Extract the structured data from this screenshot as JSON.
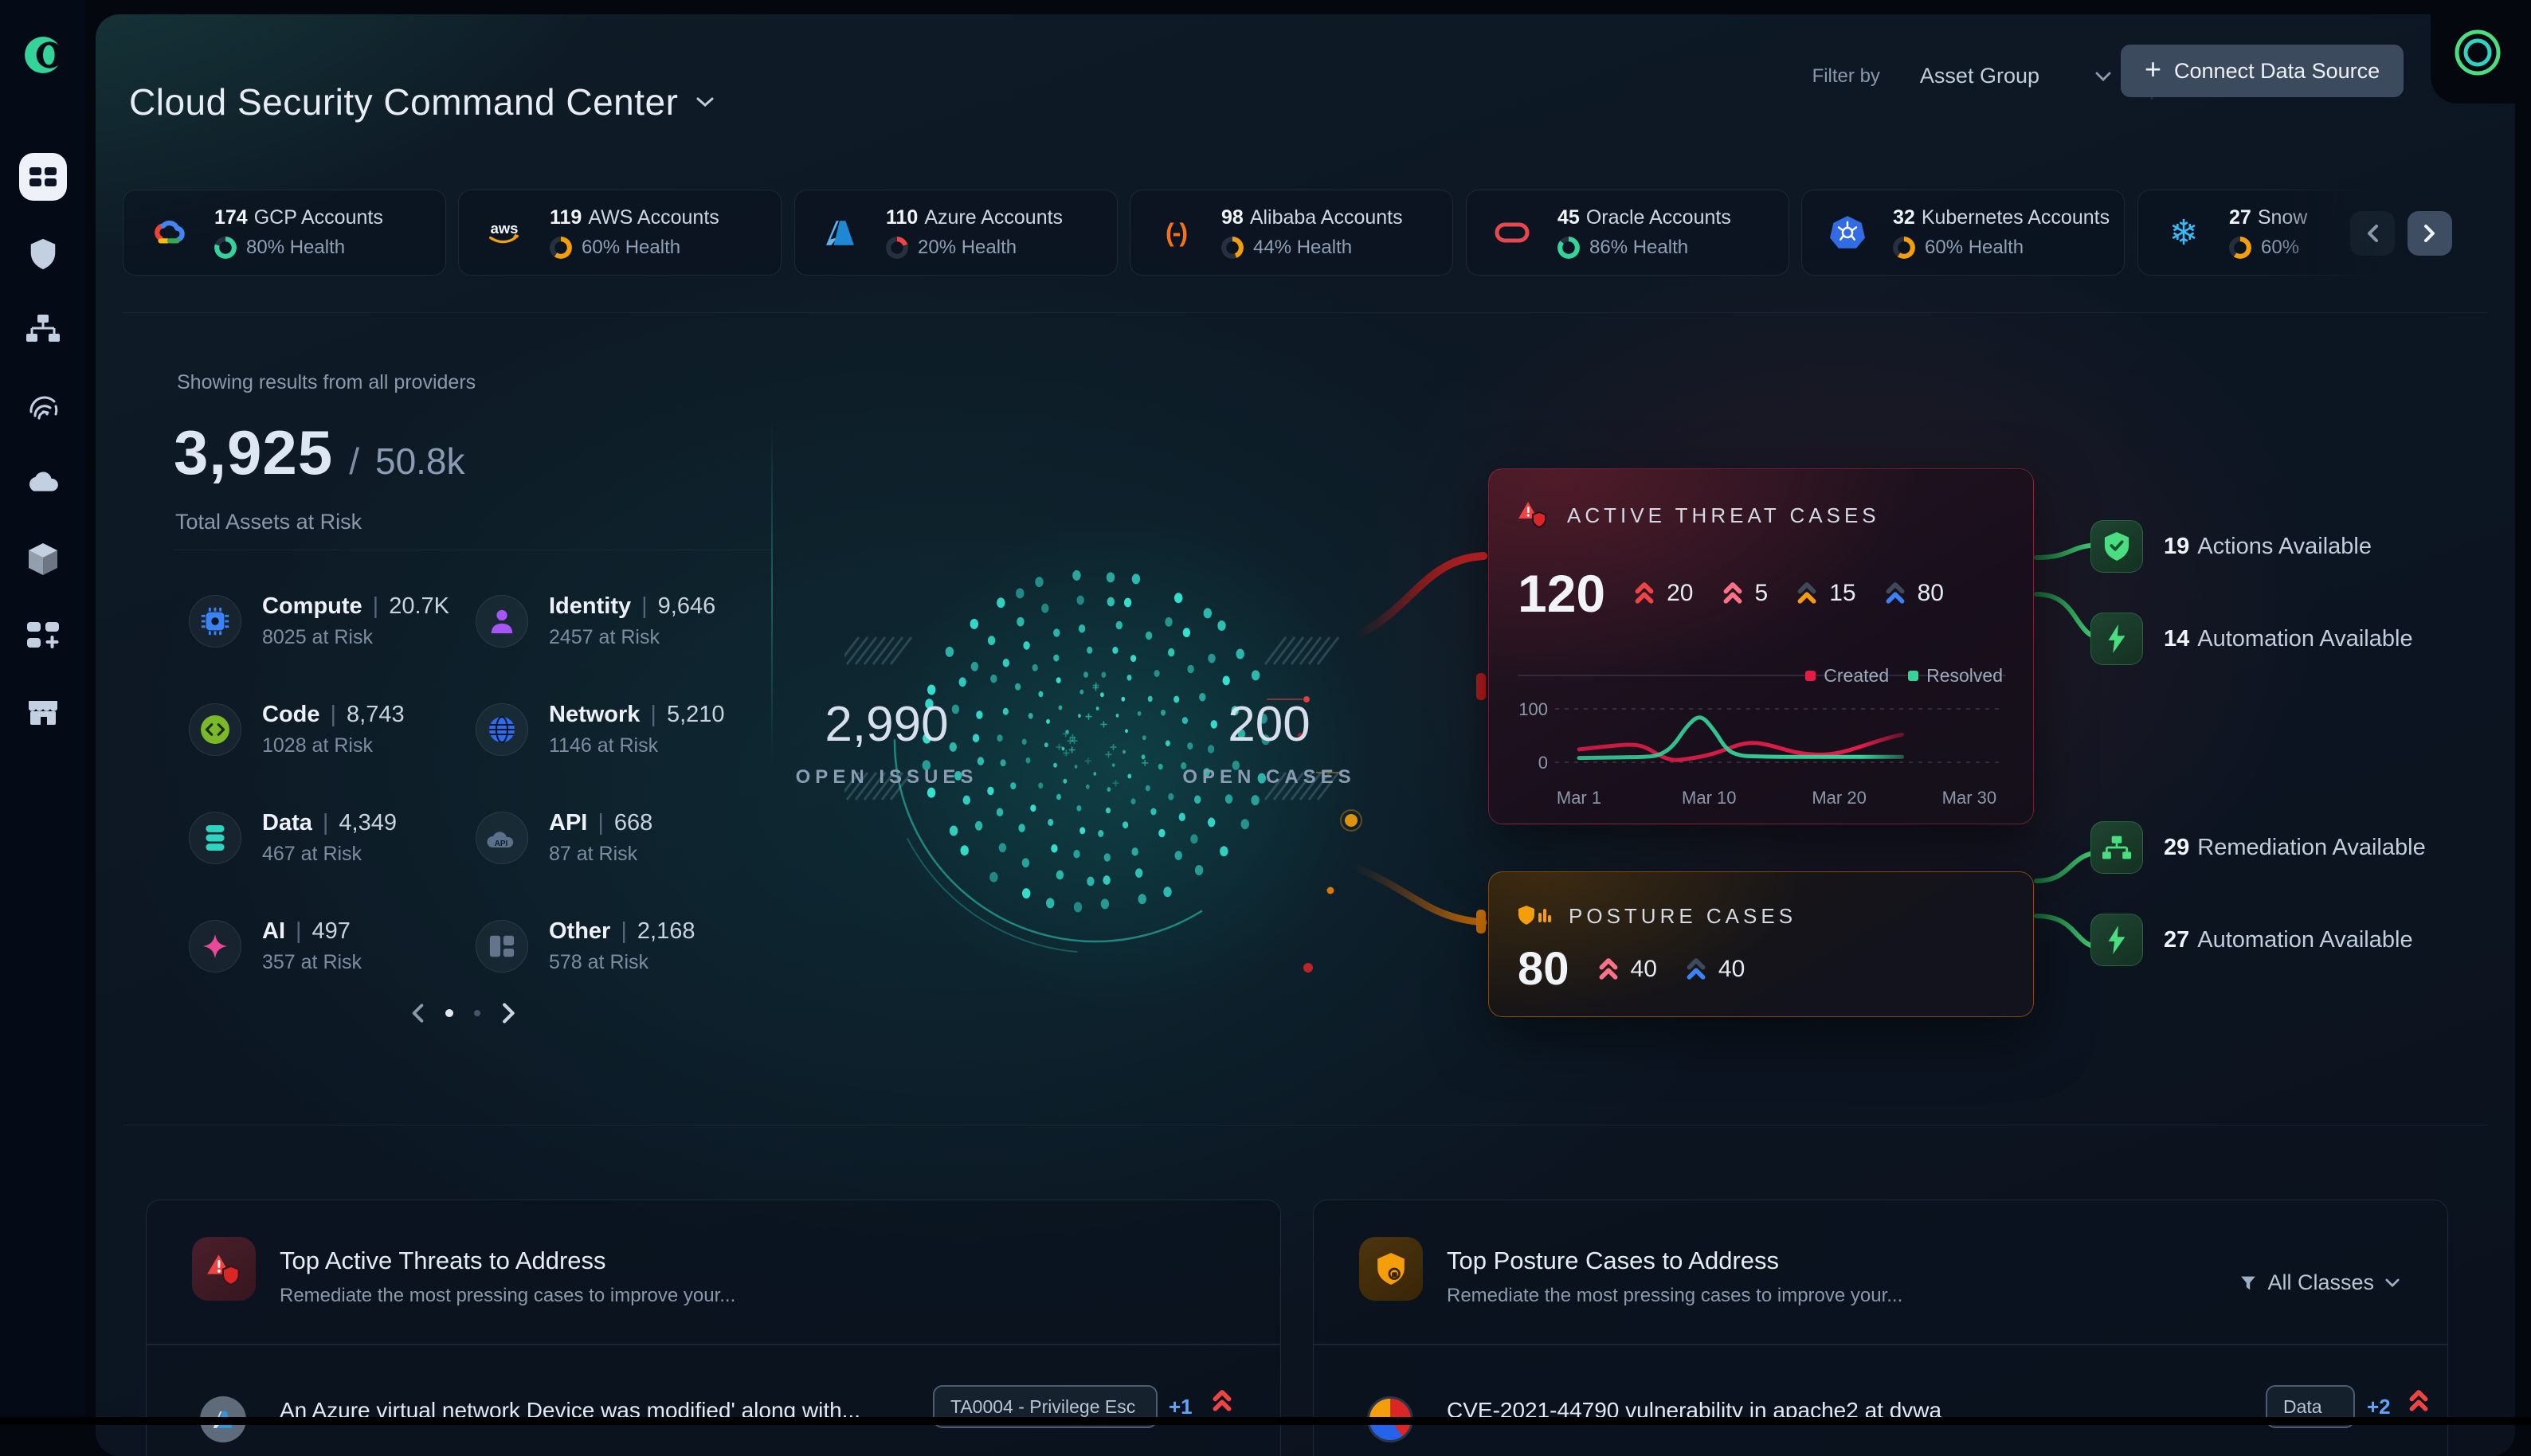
{
  "header": {
    "title": "Cloud Security Command Center",
    "filter_label": "Filter by",
    "filter_value": "Asset Group",
    "connect_button": "Connect Data Source"
  },
  "sidebar": {
    "items": [
      "orca-logo",
      "dashboard",
      "shield",
      "hierarchy",
      "fingerprint",
      "cloud",
      "package",
      "apps-add",
      "marketplace"
    ]
  },
  "providers": [
    {
      "count": "174",
      "name": "GCP Accounts",
      "health": "80% Health",
      "pct": 80,
      "color": "#34d399"
    },
    {
      "count": "119",
      "name": "AWS Accounts",
      "health": "60% Health",
      "pct": 60,
      "color": "#f59e0b"
    },
    {
      "count": "110",
      "name": "Azure Accounts",
      "health": "20% Health",
      "pct": 20,
      "color": "#ef4444"
    },
    {
      "count": "98",
      "name": "Alibaba Accounts",
      "health": "44% Health",
      "pct": 44,
      "color": "#f59e0b"
    },
    {
      "count": "45",
      "name": "Oracle Accounts",
      "health": "86% Health",
      "pct": 86,
      "color": "#34d399"
    },
    {
      "count": "32",
      "name": "Kubernetes Accounts",
      "health": "60% Health",
      "pct": 60,
      "color": "#f59e0b"
    },
    {
      "count": "27",
      "name": "Snow",
      "health": "60%",
      "pct": 60,
      "color": "#f59e0b"
    }
  ],
  "summary": {
    "scope_note": "Showing results from all providers",
    "at_risk": "3,925",
    "separator": "/",
    "total": "50.8k",
    "label": "Total Assets at Risk"
  },
  "assets": [
    {
      "name": "Compute",
      "value": "20.7K",
      "risk": "8025 at Risk"
    },
    {
      "name": "Identity",
      "value": "9,646",
      "risk": "2457 at Risk"
    },
    {
      "name": "Code",
      "value": "8,743",
      "risk": "1028 at Risk"
    },
    {
      "name": "Network",
      "value": "5,210",
      "risk": "1146 at Risk"
    },
    {
      "name": "Data",
      "value": "4,349",
      "risk": "467 at Risk"
    },
    {
      "name": "API",
      "value": "668",
      "risk": "87 at Risk"
    },
    {
      "name": "AI",
      "value": "497",
      "risk": "357 at Risk"
    },
    {
      "name": "Other",
      "value": "2,168",
      "risk": "578 at Risk"
    }
  ],
  "core": {
    "open_issues_value": "2,990",
    "open_issues_label": "OPEN ISSUES",
    "open_cases_value": "200",
    "open_cases_label": "OPEN CASES"
  },
  "threat_card": {
    "title": "ACTIVE THREAT CASES",
    "total": "120",
    "badges": [
      {
        "value": "20",
        "top": "#ef4444",
        "bottom": "#ef4444"
      },
      {
        "value": "5",
        "top": "#fb7185",
        "bottom": "#fb7185"
      },
      {
        "value": "15",
        "top": "#3e4a5c",
        "bottom": "#f59e0b"
      },
      {
        "value": "80",
        "top": "#3e4a5c",
        "bottom": "#3b82f6"
      }
    ]
  },
  "posture_card": {
    "title": "POSTURE CASES",
    "total": "80",
    "badges": [
      {
        "value": "40",
        "top": "#fb7185",
        "bottom": "#fb7185"
      },
      {
        "value": "40",
        "top": "#3e4a5c",
        "bottom": "#3b82f6"
      }
    ]
  },
  "chart_data": {
    "type": "line",
    "title": "Active Threat Cases — Created vs Resolved (March)",
    "x_ticks": [
      "Mar 1",
      "Mar 10",
      "Mar 20",
      "Mar 30"
    ],
    "x_range": [
      1,
      30
    ],
    "ylim": [
      0,
      100
    ],
    "y_ticks": [
      100,
      0
    ],
    "grid": "dashed horizontal",
    "legend_position": "top-right",
    "series": [
      {
        "name": "Created",
        "color": "#e11d48",
        "points": [
          [
            1,
            24
          ],
          [
            3,
            30
          ],
          [
            5,
            34
          ],
          [
            6,
            28
          ],
          [
            7,
            12
          ],
          [
            8,
            3
          ],
          [
            9,
            6
          ],
          [
            10,
            10
          ],
          [
            11,
            16
          ],
          [
            12,
            25
          ],
          [
            13,
            34
          ],
          [
            14,
            37
          ],
          [
            15,
            33
          ],
          [
            16,
            26
          ],
          [
            17,
            19
          ],
          [
            18,
            15
          ],
          [
            19,
            14
          ],
          [
            20,
            16
          ],
          [
            21,
            22
          ],
          [
            22,
            30
          ],
          [
            23,
            38
          ],
          [
            24,
            46
          ],
          [
            25,
            52
          ]
        ]
      },
      {
        "name": "Resolved",
        "color": "#34d399",
        "points": [
          [
            1,
            8
          ],
          [
            4,
            9
          ],
          [
            6,
            10
          ],
          [
            7,
            13
          ],
          [
            8,
            30
          ],
          [
            9,
            68
          ],
          [
            10,
            90
          ],
          [
            11,
            62
          ],
          [
            12,
            22
          ],
          [
            13,
            12
          ],
          [
            14,
            11
          ],
          [
            16,
            10
          ],
          [
            18,
            10
          ],
          [
            20,
            10
          ],
          [
            22,
            10
          ],
          [
            24,
            10
          ],
          [
            25,
            10
          ]
        ]
      }
    ],
    "fade_out_after_x": 25
  },
  "actions": [
    {
      "count": "19",
      "label": "Actions Available"
    },
    {
      "count": "14",
      "label": "Automation Available"
    },
    {
      "count": "29",
      "label": "Remediation Available"
    },
    {
      "count": "27",
      "label": "Automation Available"
    }
  ],
  "bottom_left": {
    "title": "Top Active Threats to Address",
    "subtitle": "Remediate the most pressing cases to improve your...",
    "row": {
      "text": "An Azure virtual network Device was modified' along with...",
      "badge": "TA0004 - Privilege Esc",
      "more": "+1"
    }
  },
  "bottom_right": {
    "title": "Top Posture Cases to Address",
    "subtitle": "Remediate the most pressing cases to improve your...",
    "filter": "All Classes",
    "row": {
      "text": "CVE-2021-44790 vulnerability in apache2 at dvwa",
      "badge": "Data",
      "more": "+2"
    }
  }
}
